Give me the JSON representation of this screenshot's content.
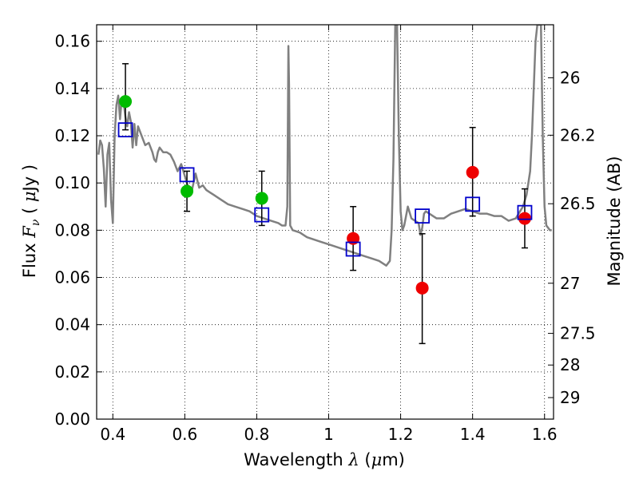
{
  "chart_data": {
    "type": "scatter",
    "xlabel": {
      "prefix": "Wavelength  ",
      "symbol": "λ",
      "unit_open": " (",
      "unit_math": "μ",
      "unit_rest": "m)"
    },
    "ylabel": {
      "prefix": "Flux  ",
      "symbol": "F",
      "subscript": "ν",
      "unit_open": "  ( ",
      "unit_math": "μ",
      "unit_rest": "Jy )"
    },
    "y2label": "Magnitude (AB)",
    "xlim": [
      0.355,
      1.625
    ],
    "ylim": [
      0.0,
      0.167
    ],
    "grid": true,
    "x_ticks": [
      {
        "value": 0.4,
        "label": "0.4"
      },
      {
        "value": 0.6,
        "label": "0.6"
      },
      {
        "value": 0.8,
        "label": "0.8"
      },
      {
        "value": 1.0,
        "label": "1"
      },
      {
        "value": 1.2,
        "label": "1.2"
      },
      {
        "value": 1.4,
        "label": "1.4"
      },
      {
        "value": 1.6,
        "label": "1.6"
      }
    ],
    "y_ticks": [
      {
        "value": 0.0,
        "label": "0.00"
      },
      {
        "value": 0.02,
        "label": "0.02"
      },
      {
        "value": 0.04,
        "label": "0.04"
      },
      {
        "value": 0.06,
        "label": "0.06"
      },
      {
        "value": 0.08,
        "label": "0.08"
      },
      {
        "value": 0.1,
        "label": "0.10"
      },
      {
        "value": 0.12,
        "label": "0.12"
      },
      {
        "value": 0.14,
        "label": "0.14"
      },
      {
        "value": 0.16,
        "label": "0.16"
      }
    ],
    "y2_ticks": [
      {
        "value": 26,
        "label": "26"
      },
      {
        "value": 26.2,
        "label": "26.2"
      },
      {
        "value": 26.5,
        "label": "26.5"
      },
      {
        "value": 27,
        "label": "27"
      },
      {
        "value": 27.5,
        "label": "27.5"
      },
      {
        "value": 28,
        "label": "28"
      },
      {
        "value": 29,
        "label": "29"
      }
    ],
    "model_spectrum": {
      "color": "#808080",
      "x": [
        0.36,
        0.365,
        0.37,
        0.375,
        0.38,
        0.385,
        0.39,
        0.395,
        0.4,
        0.405,
        0.41,
        0.415,
        0.42,
        0.425,
        0.43,
        0.435,
        0.44,
        0.445,
        0.45,
        0.455,
        0.46,
        0.465,
        0.47,
        0.48,
        0.49,
        0.5,
        0.51,
        0.515,
        0.52,
        0.525,
        0.53,
        0.54,
        0.55,
        0.56,
        0.57,
        0.58,
        0.59,
        0.6,
        0.61,
        0.62,
        0.63,
        0.64,
        0.65,
        0.66,
        0.67,
        0.68,
        0.69,
        0.7,
        0.72,
        0.74,
        0.76,
        0.78,
        0.8,
        0.82,
        0.84,
        0.86,
        0.87,
        0.88,
        0.885,
        0.888,
        0.89,
        0.893,
        0.9,
        0.92,
        0.94,
        0.96,
        0.98,
        1.0,
        1.02,
        1.04,
        1.06,
        1.08,
        1.1,
        1.12,
        1.14,
        1.16,
        1.17,
        1.175,
        1.18,
        1.185,
        1.19,
        1.195,
        1.2,
        1.205,
        1.21,
        1.22,
        1.23,
        1.24,
        1.25,
        1.255,
        1.26,
        1.265,
        1.27,
        1.28,
        1.3,
        1.32,
        1.34,
        1.36,
        1.38,
        1.4,
        1.42,
        1.44,
        1.46,
        1.48,
        1.5,
        1.52,
        1.54,
        1.55,
        1.56,
        1.565,
        1.57,
        1.575,
        1.58,
        1.585,
        1.59,
        1.595,
        1.6,
        1.605,
        1.61,
        1.615,
        1.62
      ],
      "y": [
        0.112,
        0.118,
        0.116,
        0.106,
        0.09,
        0.112,
        0.117,
        0.093,
        0.083,
        0.12,
        0.133,
        0.137,
        0.127,
        0.136,
        0.134,
        0.128,
        0.124,
        0.13,
        0.126,
        0.115,
        0.125,
        0.116,
        0.124,
        0.12,
        0.116,
        0.117,
        0.113,
        0.11,
        0.109,
        0.113,
        0.115,
        0.113,
        0.113,
        0.112,
        0.109,
        0.105,
        0.108,
        0.103,
        0.098,
        0.097,
        0.104,
        0.098,
        0.099,
        0.097,
        0.096,
        0.095,
        0.094,
        0.093,
        0.091,
        0.09,
        0.089,
        0.088,
        0.086,
        0.085,
        0.084,
        0.083,
        0.082,
        0.082,
        0.09,
        0.158,
        0.14,
        0.082,
        0.08,
        0.079,
        0.077,
        0.076,
        0.075,
        0.074,
        0.073,
        0.072,
        0.071,
        0.07,
        0.069,
        0.068,
        0.067,
        0.065,
        0.067,
        0.08,
        0.11,
        0.167,
        0.167,
        0.12,
        0.088,
        0.08,
        0.082,
        0.09,
        0.085,
        0.084,
        0.083,
        0.078,
        0.081,
        0.087,
        0.088,
        0.087,
        0.085,
        0.085,
        0.087,
        0.088,
        0.089,
        0.088,
        0.087,
        0.087,
        0.086,
        0.086,
        0.084,
        0.085,
        0.09,
        0.095,
        0.105,
        0.12,
        0.14,
        0.16,
        0.167,
        0.167,
        0.167,
        0.12,
        0.09,
        0.082,
        0.081,
        0.08,
        0.08
      ]
    },
    "model_photometry": {
      "color": "#0000cc",
      "x": [
        0.435,
        0.606,
        0.814,
        1.068,
        1.26,
        1.4,
        1.545
      ],
      "y": [
        0.1225,
        0.1035,
        0.0865,
        0.072,
        0.086,
        0.091,
        0.0875
      ]
    },
    "observed_optical": {
      "color": "#00bb00",
      "x": [
        0.435,
        0.606,
        0.814
      ],
      "y": [
        0.1345,
        0.0965,
        0.0935
      ],
      "err_low": [
        0.1225,
        0.088,
        0.082
      ],
      "err_high": [
        0.1505,
        0.105,
        0.105
      ]
    },
    "observed_nir": {
      "color": "#ee0000",
      "x": [
        1.068,
        1.26,
        1.4,
        1.545
      ],
      "y": [
        0.0765,
        0.0555,
        0.1045,
        0.085
      ],
      "err_low": [
        0.063,
        0.032,
        0.086,
        0.0725
      ],
      "err_high": [
        0.09,
        0.0785,
        0.1235,
        0.0975
      ]
    }
  }
}
